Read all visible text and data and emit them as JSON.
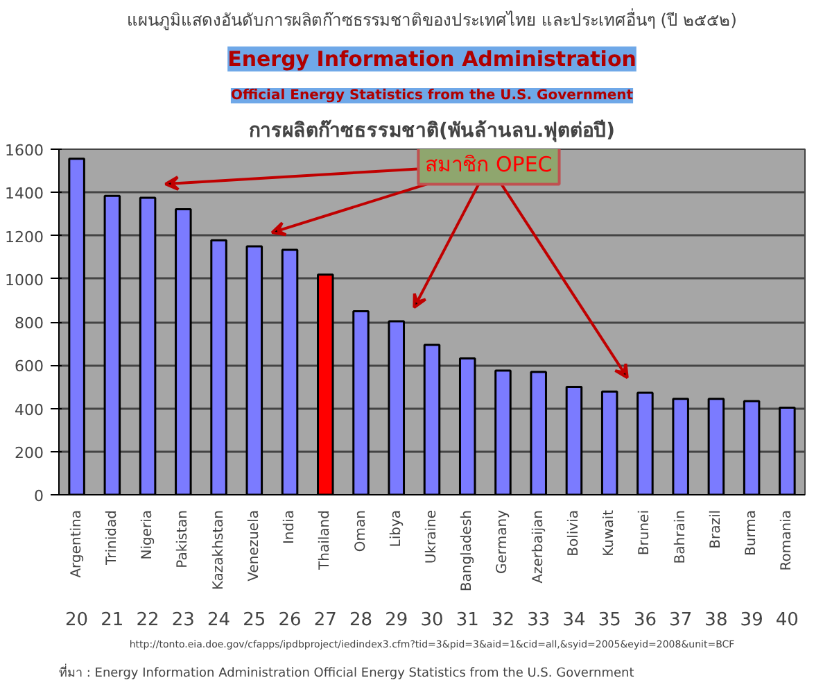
{
  "chart_data": {
    "type": "bar",
    "title": "แผนภูมิแสดงอันดับการผลิตก๊าซธรรมชาติของประเทศไทย และประเทศอื่นๆ (ปี ๒๕๕๒)",
    "subtitle": "การผลิตก๊าซธรรมชาติ(พันล้านลบ.ฟุตต่อปี)",
    "categories": [
      "Argentina",
      "Trinidad",
      "Nigeria",
      "Pakistan",
      "Kazakhstan",
      "Venezuela",
      "India",
      "Thailand",
      "Oman",
      "Libya",
      "Ukraine",
      "Bangladesh",
      "Germany",
      "Azerbaijan",
      "Bolivia",
      "Kuwait",
      "Brunei",
      "Bahrain",
      "Brazil",
      "Burma",
      "Romania"
    ],
    "values": [
      1556,
      1384,
      1375,
      1322,
      1178,
      1150,
      1134,
      1019,
      850,
      803,
      694,
      631,
      575,
      569,
      500,
      478,
      472,
      444,
      444,
      434,
      403
    ],
    "colors": [
      "#7b7bff",
      "#7b7bff",
      "#7b7bff",
      "#7b7bff",
      "#7b7bff",
      "#7b7bff",
      "#7b7bff",
      "#ff0000",
      "#7b7bff",
      "#7b7bff",
      "#7b7bff",
      "#7b7bff",
      "#7b7bff",
      "#7b7bff",
      "#7b7bff",
      "#7b7bff",
      "#7b7bff",
      "#7b7bff",
      "#7b7bff",
      "#7b7bff",
      "#7b7bff"
    ],
    "ylim": [
      0,
      1600
    ],
    "yticks": [
      0,
      200,
      400,
      600,
      800,
      1000,
      1200,
      1400,
      1600
    ],
    "grid": "y",
    "annotations": [
      "Energy Information Administration",
      "Official Energy Statistics from the U.S. Government",
      "สมาชิก OPEC",
      "20",
      "21",
      "22",
      "23",
      "24",
      "25",
      "26",
      "27",
      "28",
      "29",
      "30",
      "31",
      "32",
      "33",
      "34",
      "35",
      "36",
      "37",
      "38",
      "39",
      "40",
      "http://tonto.eia.doe.gov/cfapps/ipdbproject/iedindex3.cfm?tid=3&pid=3&aid=1&cid=all,&syid=2005&eyid=2008&unit=BCF",
      "ที่มา : Energy Information Administration Official Energy Statistics from the U.S. Government"
    ]
  }
}
